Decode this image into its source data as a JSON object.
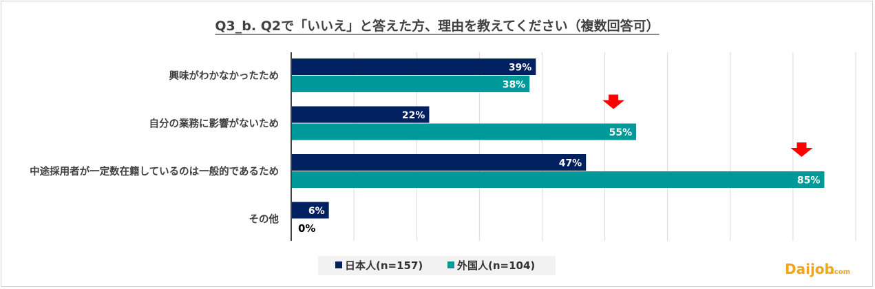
{
  "chart_data": {
    "type": "bar",
    "orientation": "horizontal",
    "title": "Q3_b. Q2で「いいえ」と答えた方、理由を教えてください（複数回答可）",
    "categories": [
      "興味がわかなかったため",
      "自分の業務に影響がないため",
      "中途採用者が一定数在籍しているのは一般的であるため",
      "その他"
    ],
    "series": [
      {
        "name": "日本人(n=157)",
        "values": [
          39,
          22,
          47,
          6
        ],
        "labels": [
          "39%",
          "22%",
          "47%",
          "6%"
        ],
        "color": "#002060"
      },
      {
        "name": "外国人(n=104)",
        "values": [
          38,
          55,
          85,
          0
        ],
        "labels": [
          "38%",
          "55%",
          "85%",
          "0%"
        ],
        "color": "#009999"
      }
    ],
    "xlim": [
      0,
      90
    ],
    "grid": true,
    "legend_position": "bottom",
    "highlight_arrows": [
      {
        "series": 1,
        "category": 1
      },
      {
        "series": 1,
        "category": 2
      }
    ],
    "arrow_color": "#ff0000"
  },
  "logo": {
    "text": "Daijob",
    "suffix": ".com"
  }
}
